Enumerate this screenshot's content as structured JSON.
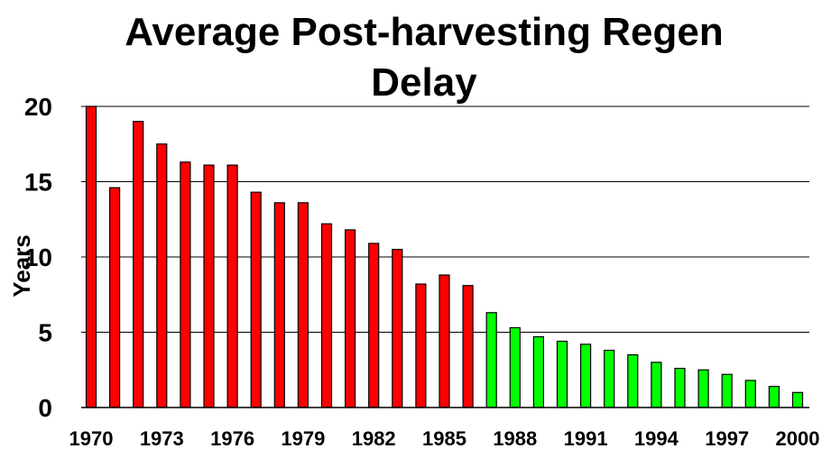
{
  "chart_data": {
    "type": "bar",
    "title_lines": [
      "Average Post-harvesting Regen",
      "Delay"
    ],
    "xlabel": "",
    "ylabel": "Years",
    "ylim": [
      0,
      20
    ],
    "yticks": [
      0,
      5,
      10,
      15,
      20
    ],
    "xtick_labels": [
      "1970",
      "1973",
      "1976",
      "1979",
      "1982",
      "1985",
      "1988",
      "1991",
      "1994",
      "1997",
      "2000"
    ],
    "grid": "horizontal",
    "legend": "none",
    "colors": {
      "before_1987": "#ff0000",
      "from_1987": "#00ff00",
      "outline": "#000000",
      "grid": "#000000"
    },
    "categories": [
      1970,
      1971,
      1972,
      1973,
      1974,
      1975,
      1976,
      1977,
      1978,
      1979,
      1980,
      1981,
      1982,
      1983,
      1984,
      1985,
      1986,
      1987,
      1988,
      1989,
      1990,
      1991,
      1992,
      1993,
      1994,
      1995,
      1996,
      1997,
      1998,
      1999,
      2000
    ],
    "values": [
      20.0,
      14.6,
      19.0,
      17.5,
      16.3,
      16.1,
      16.1,
      14.3,
      13.6,
      13.6,
      12.2,
      11.8,
      10.9,
      10.5,
      8.2,
      8.8,
      8.1,
      6.3,
      5.3,
      4.7,
      4.4,
      4.2,
      3.8,
      3.5,
      3.0,
      2.6,
      2.5,
      2.2,
      1.8,
      1.4,
      1.0
    ],
    "bar_colors": [
      "#ff0000",
      "#ff0000",
      "#ff0000",
      "#ff0000",
      "#ff0000",
      "#ff0000",
      "#ff0000",
      "#ff0000",
      "#ff0000",
      "#ff0000",
      "#ff0000",
      "#ff0000",
      "#ff0000",
      "#ff0000",
      "#ff0000",
      "#ff0000",
      "#ff0000",
      "#00ff00",
      "#00ff00",
      "#00ff00",
      "#00ff00",
      "#00ff00",
      "#00ff00",
      "#00ff00",
      "#00ff00",
      "#00ff00",
      "#00ff00",
      "#00ff00",
      "#00ff00",
      "#00ff00",
      "#00ff00"
    ]
  }
}
